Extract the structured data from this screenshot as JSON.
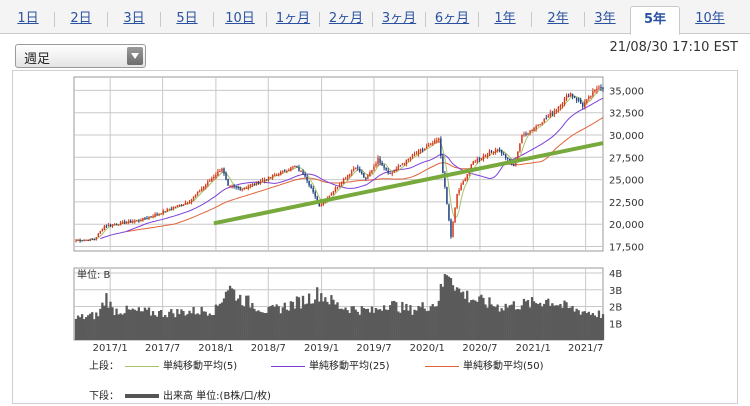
{
  "tabs": [
    {
      "label": "1日",
      "active": false
    },
    {
      "label": "2日",
      "active": false
    },
    {
      "label": "3日",
      "active": false
    },
    {
      "label": "5日",
      "active": false
    },
    {
      "label": "10日",
      "active": false
    },
    {
      "label": "1ヶ月",
      "active": false
    },
    {
      "label": "2ヶ月",
      "active": false
    },
    {
      "label": "3ヶ月",
      "active": false
    },
    {
      "label": "6ヶ月",
      "active": false
    },
    {
      "label": "1年",
      "active": false
    },
    {
      "label": "2年",
      "active": false
    },
    {
      "label": "3年",
      "active": false
    },
    {
      "label": "5年",
      "active": true
    },
    {
      "label": "10年",
      "active": false
    }
  ],
  "period_select": {
    "value": "週足"
  },
  "timestamp": "21/08/30 17:10 EST",
  "legend": {
    "upper_prefix": "上段：",
    "lower_prefix": "下段：",
    "items": [
      {
        "label": "単純移動平均(5)",
        "color": "#a8c26a"
      },
      {
        "label": "単純移動平均(25)",
        "color": "#7d3fd8"
      },
      {
        "label": "単純移動平均(50)",
        "color": "#e0643a"
      }
    ],
    "volume_label": "出来高 単位:(B株/口/枚)",
    "volume_color": "#555555"
  },
  "colors": {
    "up_candle": "#d43a1a",
    "down_candle": "#1f3f80",
    "trendline": "#77a93c",
    "volume_bar": "#5a5a5a",
    "grid": "#c8c8c8"
  },
  "chart_data": [
    {
      "type": "candlestick",
      "x_axis": "weekly dates",
      "y_ticks": [
        "35,000",
        "32,500",
        "30,000",
        "27,500",
        "25,000",
        "22,500",
        "20,000",
        "17,500"
      ],
      "ylim": [
        17000,
        36500
      ],
      "x_ticks": [
        "2017/1",
        "2017/7",
        "2018/1",
        "2018/7",
        "2019/1",
        "2019/7",
        "2020/1",
        "2020/7",
        "2021/1",
        "2021/7"
      ],
      "x_tick_dates": [
        "2017-01-01",
        "2017-07-01",
        "2018-01-01",
        "2018-07-01",
        "2019-01-01",
        "2019-07-01",
        "2020-01-01",
        "2020-07-01",
        "2021-01-01",
        "2021-07-01"
      ],
      "xlim_dates": [
        "2016-08-29",
        "2021-08-30"
      ],
      "close_keypoints": [
        {
          "date": "2016-09-05",
          "close": 18200
        },
        {
          "date": "2016-11-07",
          "close": 18300
        },
        {
          "date": "2016-12-12",
          "close": 19800
        },
        {
          "date": "2017-04-17",
          "close": 20500
        },
        {
          "date": "2017-07-03",
          "close": 21400
        },
        {
          "date": "2017-10-02",
          "close": 22600
        },
        {
          "date": "2018-01-22",
          "close": 26300
        },
        {
          "date": "2018-02-12",
          "close": 24200
        },
        {
          "date": "2018-04-02",
          "close": 24000
        },
        {
          "date": "2018-06-04",
          "close": 24800
        },
        {
          "date": "2018-10-01",
          "close": 26500
        },
        {
          "date": "2018-11-05",
          "close": 25500
        },
        {
          "date": "2018-12-24",
          "close": 22000
        },
        {
          "date": "2019-04-29",
          "close": 26500
        },
        {
          "date": "2019-06-03",
          "close": 25000
        },
        {
          "date": "2019-07-15",
          "close": 27300
        },
        {
          "date": "2019-08-26",
          "close": 25600
        },
        {
          "date": "2019-11-04",
          "close": 27500
        },
        {
          "date": "2020-02-10",
          "close": 29500
        },
        {
          "date": "2020-03-23",
          "close": 18600
        },
        {
          "date": "2020-04-13",
          "close": 23400
        },
        {
          "date": "2020-06-08",
          "close": 27000
        },
        {
          "date": "2020-08-31",
          "close": 28500
        },
        {
          "date": "2020-10-26",
          "close": 26500
        },
        {
          "date": "2020-11-23",
          "close": 29900
        },
        {
          "date": "2021-01-04",
          "close": 30800
        },
        {
          "date": "2021-03-15",
          "close": 32700
        },
        {
          "date": "2021-05-10",
          "close": 34700
        },
        {
          "date": "2021-06-21",
          "close": 33300
        },
        {
          "date": "2021-08-16",
          "close": 35500
        },
        {
          "date": "2021-08-30",
          "close": 35300
        }
      ],
      "trendline": [
        {
          "date": "2017-12-25",
          "value": 20100
        },
        {
          "date": "2021-08-30",
          "value": 29100
        }
      ],
      "series": [
        {
          "name": "単純移動平均(5)"
        },
        {
          "name": "単純移動平均(25)"
        },
        {
          "name": "単純移動平均(50)"
        }
      ]
    },
    {
      "type": "bar",
      "unit_label": "単位: B",
      "y_ticks": [
        "4B",
        "3B",
        "2B",
        "1B"
      ],
      "ylim": [
        0,
        4.3
      ],
      "volume_keypoints": [
        {
          "date": "2016-09-05",
          "volume": 1.3
        },
        {
          "date": "2016-11-21",
          "volume": 1.5
        },
        {
          "date": "2016-12-19",
          "volume": 2.6
        },
        {
          "date": "2017-01-09",
          "volume": 1.8
        },
        {
          "date": "2017-07-03",
          "volume": 1.6
        },
        {
          "date": "2018-01-01",
          "volume": 1.8
        },
        {
          "date": "2018-02-12",
          "volume": 3.2
        },
        {
          "date": "2018-03-26",
          "volume": 2.5
        },
        {
          "date": "2018-07-02",
          "volume": 1.7
        },
        {
          "date": "2018-10-22",
          "volume": 2.3
        },
        {
          "date": "2018-12-24",
          "volume": 2.8
        },
        {
          "date": "2019-03-04",
          "volume": 2.0
        },
        {
          "date": "2019-07-01",
          "volume": 1.7
        },
        {
          "date": "2019-08-12",
          "volume": 2.2
        },
        {
          "date": "2019-11-04",
          "volume": 1.8
        },
        {
          "date": "2020-02-03",
          "volume": 2.2
        },
        {
          "date": "2020-03-09",
          "volume": 4.0
        },
        {
          "date": "2020-03-16",
          "volume": 4.2
        },
        {
          "date": "2020-04-20",
          "volume": 2.9
        },
        {
          "date": "2020-06-15",
          "volume": 2.4
        },
        {
          "date": "2020-09-07",
          "volume": 2.0
        },
        {
          "date": "2021-01-04",
          "volume": 2.2
        },
        {
          "date": "2021-02-22",
          "volume": 2.4
        },
        {
          "date": "2021-05-03",
          "volume": 1.9
        },
        {
          "date": "2021-08-30",
          "volume": 1.5
        }
      ]
    }
  ]
}
